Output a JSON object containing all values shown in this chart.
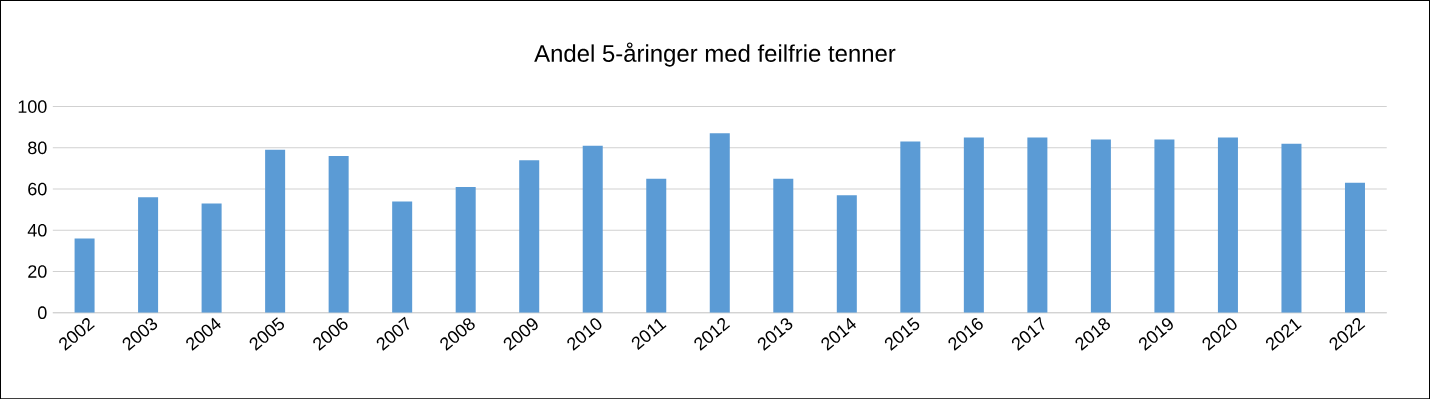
{
  "chart_data": {
    "type": "bar",
    "title": "Andel 5-åringer med feilfrie tenner",
    "categories": [
      "2002",
      "2003",
      "2004",
      "2005",
      "2006",
      "2007",
      "2008",
      "2009",
      "2010",
      "2011",
      "2012",
      "2013",
      "2014",
      "2015",
      "2016",
      "2017",
      "2018",
      "2019",
      "2020",
      "2021",
      "2022"
    ],
    "values": [
      36,
      56,
      53,
      79,
      76,
      54,
      61,
      74,
      81,
      65,
      87,
      65,
      57,
      83,
      85,
      85,
      84,
      84,
      85,
      82,
      63
    ],
    "color": "#5b9bd5",
    "ylim": [
      0,
      100
    ],
    "yticks": [
      0,
      20,
      40,
      60,
      80,
      100
    ],
    "grid": "y"
  }
}
